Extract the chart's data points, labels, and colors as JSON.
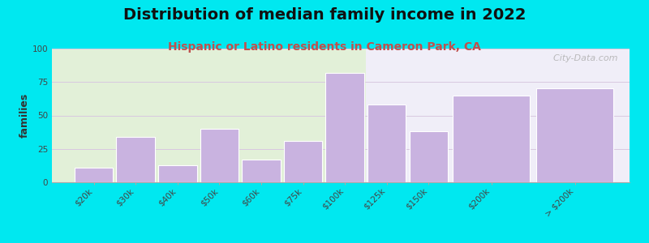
{
  "title": "Distribution of median family income in 2022",
  "subtitle": "Hispanic or Latino residents in Cameron Park, CA",
  "ylabel": "families",
  "categories": [
    "$20k",
    "$30k",
    "$40k",
    "$50k",
    "$60k",
    "$75k",
    "$100k",
    "$125k",
    "$150k",
    "$200k",
    "> $200k"
  ],
  "values": [
    11,
    34,
    13,
    40,
    17,
    31,
    82,
    58,
    38,
    65,
    70
  ],
  "bar_color": "#c9b3e0",
  "bar_edgecolor": "#ffffff",
  "ylim": [
    0,
    100
  ],
  "yticks": [
    0,
    25,
    50,
    75,
    100
  ],
  "background_color": "#00e8f0",
  "plot_bg_green": "#e2f0d8",
  "plot_bg_white": "#f0eef8",
  "title_fontsize": 14,
  "subtitle_fontsize": 10,
  "subtitle_color": "#c0504d",
  "ylabel_fontsize": 9,
  "tick_fontsize": 7.5,
  "watermark": "  City-Data.com",
  "grid_color": "#d8c8e0",
  "n_green_bars": 7,
  "bar_widths": [
    1,
    1,
    1,
    1,
    1,
    1,
    1,
    1,
    1,
    2,
    2
  ],
  "bar_lefts": [
    0,
    1,
    2,
    3,
    4,
    5,
    6,
    7,
    8,
    9,
    11
  ]
}
